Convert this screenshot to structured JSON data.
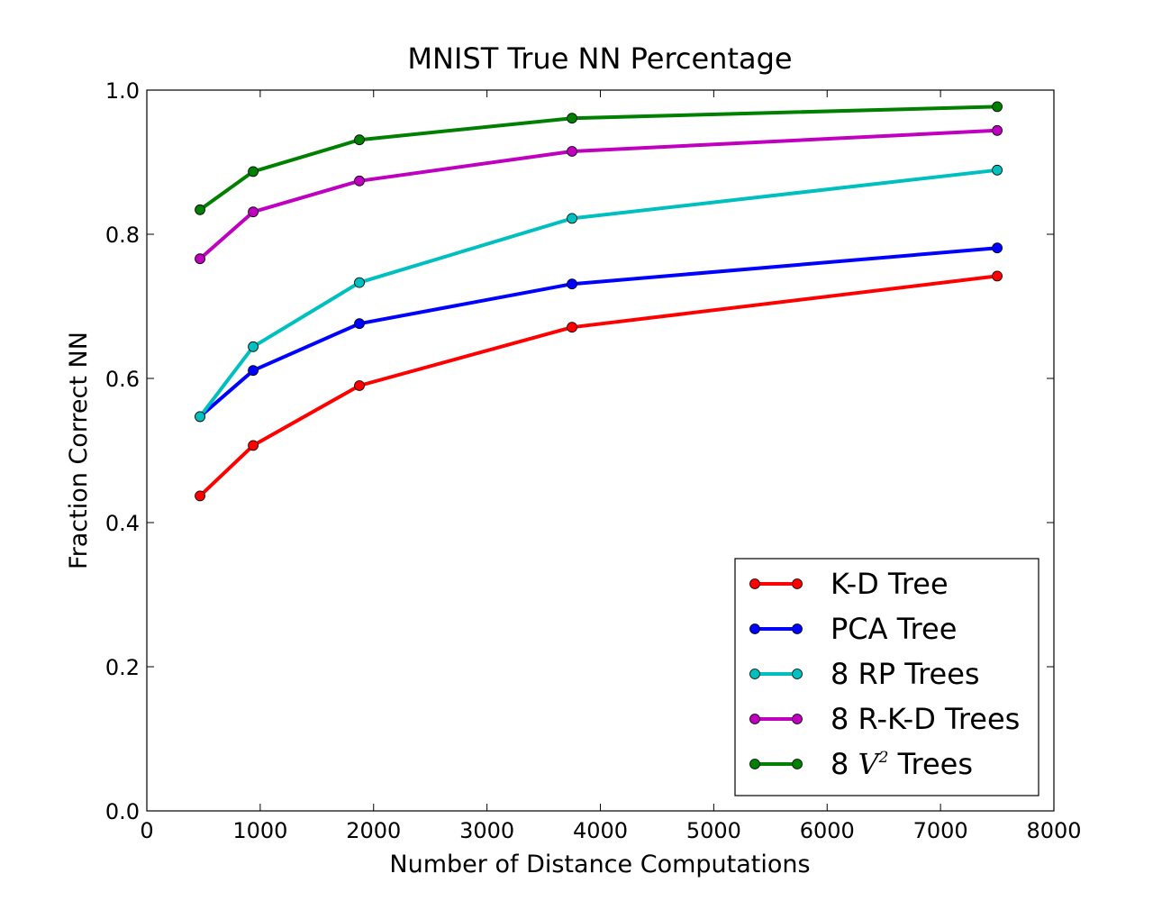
{
  "chart_data": {
    "type": "line",
    "title": "MNIST True NN Percentage",
    "xlabel": "Number of Distance Computations",
    "ylabel": "Fraction Correct NN",
    "xlim": [
      0,
      8000
    ],
    "ylim": [
      0.0,
      1.0
    ],
    "xticks": [
      0,
      1000,
      2000,
      3000,
      4000,
      5000,
      6000,
      7000,
      8000
    ],
    "xtick_labels": [
      "0",
      "1000",
      "2000",
      "3000",
      "4000",
      "5000",
      "6000",
      "7000",
      "8000"
    ],
    "yticks": [
      0.0,
      0.2,
      0.4,
      0.6,
      0.8,
      1.0
    ],
    "ytick_labels": [
      "0.0",
      "0.2",
      "0.4",
      "0.6",
      "0.8",
      "1.0"
    ],
    "grid": false,
    "legend_position": "bottom-right",
    "x": [
      469,
      938,
      1875,
      3750,
      7500
    ],
    "series": [
      {
        "name": "K-D Tree",
        "color": "#ff0000",
        "values": [
          0.437,
          0.507,
          0.59,
          0.671,
          0.742
        ]
      },
      {
        "name": "PCA Tree",
        "color": "#0000ff",
        "values": [
          0.547,
          0.611,
          0.676,
          0.731,
          0.781
        ]
      },
      {
        "name": "8 RP Trees",
        "color": "#00bfbf",
        "values": [
          0.547,
          0.644,
          0.733,
          0.822,
          0.889
        ]
      },
      {
        "name": "8 R-K-D Trees",
        "color": "#bf00bf",
        "values": [
          0.766,
          0.831,
          0.874,
          0.915,
          0.944
        ]
      },
      {
        "name": "8 V² Trees",
        "legend_prefix": "8",
        "legend_symbol": "V",
        "legend_superscript": "2",
        "legend_suffix": "Trees",
        "color": "#008000",
        "values": [
          0.834,
          0.887,
          0.931,
          0.961,
          0.977
        ]
      }
    ]
  }
}
